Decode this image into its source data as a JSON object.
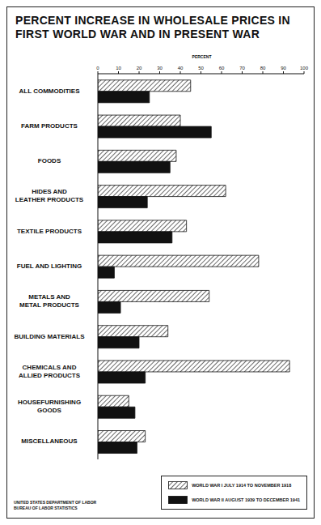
{
  "chart_data": {
    "type": "bar",
    "orientation": "horizontal",
    "title": "PERCENT INCREASE IN WHOLESALE PRICES IN FIRST WORLD WAR AND IN PRESENT WAR",
    "xlabel": "PERCENT",
    "categories": [
      "ALL COMMODITIES",
      "FARM PRODUCTS",
      "FOODS",
      "HIDES AND LEATHER PRODUCTS",
      "TEXTILE PRODUCTS",
      "FUEL AND LIGHTING",
      "METALS AND METAL PRODUCTS",
      "BUILDING MATERIALS",
      "CHEMICALS AND ALLIED PRODUCTS",
      "HOUSEFURNISHING GOODS",
      "MISCELLANEOUS"
    ],
    "series": [
      {
        "name": "WORLD WAR I JULY 1914 TO NOVEMBER 1918",
        "color": "#444444",
        "values": [
          45,
          40,
          38,
          62,
          43,
          78,
          54,
          34,
          93,
          15,
          23
        ]
      },
      {
        "name": "WORLD WAR II AUGUST 1939 TO DECEMBER 1941",
        "color": "#111111",
        "values": [
          25,
          55,
          35,
          24,
          36,
          8,
          11,
          20,
          23,
          18,
          19
        ]
      }
    ],
    "xlim": [
      0,
      100
    ],
    "xticks": [
      0,
      10,
      20,
      30,
      40,
      50,
      60,
      70,
      80,
      90,
      100
    ],
    "grid": false,
    "legend": "lower right",
    "annotations": [
      "UNITED STATES DEPARTMENT OF LABOR",
      "BUREAU OF LABOR STATISTICS"
    ]
  }
}
